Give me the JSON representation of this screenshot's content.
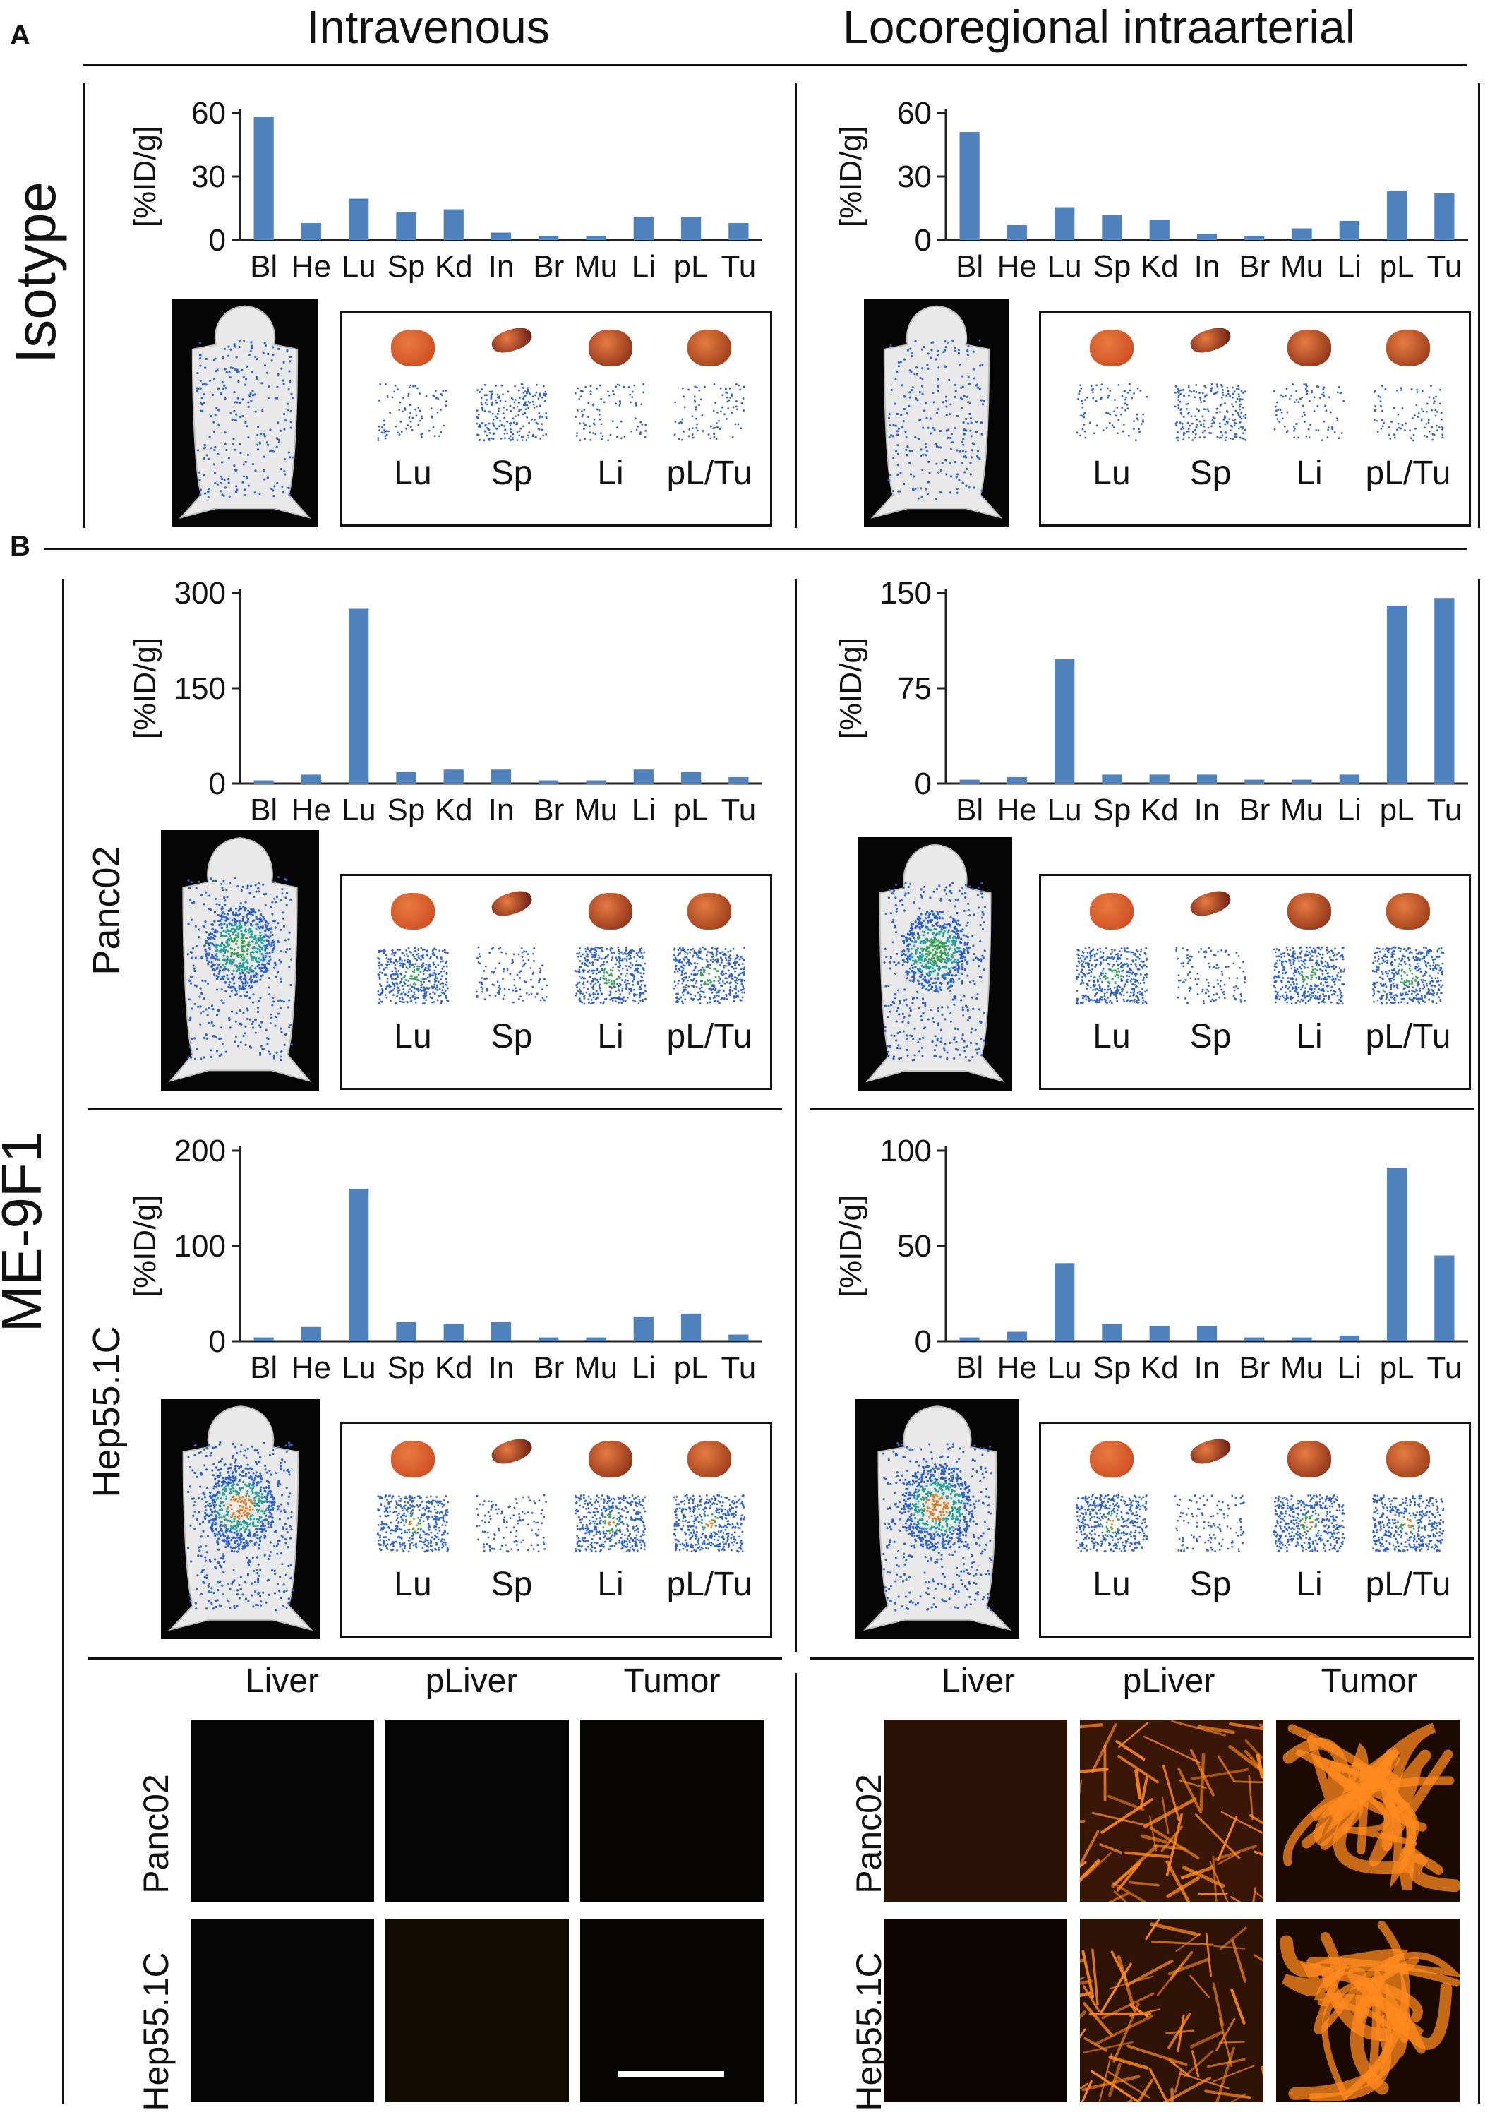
{
  "panels": {
    "a": "A",
    "b": "B"
  },
  "columns": {
    "left": "Intravenous",
    "right": "Locoregional intraarterial"
  },
  "rows": {
    "isotype": "Isotype",
    "me9f1": "ME-9F1",
    "panc02": "Panc02",
    "hep": "Hep55.1C"
  },
  "organ_labels": [
    "Lu",
    "Sp",
    "Li",
    "pL/Tu"
  ],
  "micro": {
    "headers": [
      "Liver",
      "pLiver",
      "Tumor"
    ],
    "rows": [
      "Panc02",
      "Hep55.1C"
    ]
  },
  "colors": {
    "bar": "#4f81bd",
    "axis": "#222222",
    "fluor": "#ff8a1e"
  },
  "chart_data": [
    {
      "id": "iso_iv",
      "type": "bar",
      "ylabel": "[%ID/g]",
      "categories": [
        "Bl",
        "He",
        "Lu",
        "Sp",
        "Kd",
        "In",
        "Br",
        "Mu",
        "Li",
        "pL",
        "Tu"
      ],
      "values": [
        58,
        8,
        19.5,
        13,
        14.5,
        3.5,
        2,
        2,
        11,
        11,
        8
      ],
      "yticks": [
        0,
        30,
        60
      ],
      "ylim": [
        0,
        60
      ]
    },
    {
      "id": "iso_ia",
      "type": "bar",
      "ylabel": "[%ID/g]",
      "categories": [
        "Bl",
        "He",
        "Lu",
        "Sp",
        "Kd",
        "In",
        "Br",
        "Mu",
        "Li",
        "pL",
        "Tu"
      ],
      "values": [
        51,
        7,
        15.5,
        12,
        9.5,
        3,
        2,
        5.5,
        9,
        23,
        22
      ],
      "yticks": [
        0,
        30,
        60
      ],
      "ylim": [
        0,
        60
      ]
    },
    {
      "id": "panc_iv",
      "type": "bar",
      "ylabel": "[%ID/g]",
      "categories": [
        "Bl",
        "He",
        "Lu",
        "Sp",
        "Kd",
        "In",
        "Br",
        "Mu",
        "Li",
        "pL",
        "Tu"
      ],
      "values": [
        5,
        14,
        275,
        18,
        22,
        22,
        5,
        5,
        22,
        18,
        10
      ],
      "yticks": [
        0,
        150,
        300
      ],
      "ylim": [
        0,
        300
      ]
    },
    {
      "id": "panc_ia",
      "type": "bar",
      "ylabel": "[%ID/g]",
      "categories": [
        "Bl",
        "He",
        "Lu",
        "Sp",
        "Kd",
        "In",
        "Br",
        "Mu",
        "Li",
        "pL",
        "Tu"
      ],
      "values": [
        3,
        5,
        98,
        7,
        7,
        7,
        3,
        3,
        7,
        140,
        146
      ],
      "yticks": [
        0,
        75,
        150
      ],
      "ylim": [
        0,
        150
      ]
    },
    {
      "id": "hep_iv",
      "type": "bar",
      "ylabel": "[%ID/g]",
      "categories": [
        "Bl",
        "He",
        "Lu",
        "Sp",
        "Kd",
        "In",
        "Br",
        "Mu",
        "Li",
        "pL",
        "Tu"
      ],
      "values": [
        4,
        15,
        160,
        20,
        18,
        20,
        4,
        4,
        26,
        29,
        7
      ],
      "yticks": [
        0,
        100,
        200
      ],
      "ylim": [
        0,
        200
      ]
    },
    {
      "id": "hep_ia",
      "type": "bar",
      "ylabel": "[%ID/g]",
      "categories": [
        "Bl",
        "He",
        "Lu",
        "Sp",
        "Kd",
        "In",
        "Br",
        "Mu",
        "Li",
        "pL",
        "Tu"
      ],
      "values": [
        2,
        5,
        41,
        9,
        8,
        8,
        2,
        2,
        3,
        91,
        45
      ],
      "yticks": [
        0,
        50,
        100
      ],
      "ylim": [
        0,
        100
      ]
    }
  ]
}
